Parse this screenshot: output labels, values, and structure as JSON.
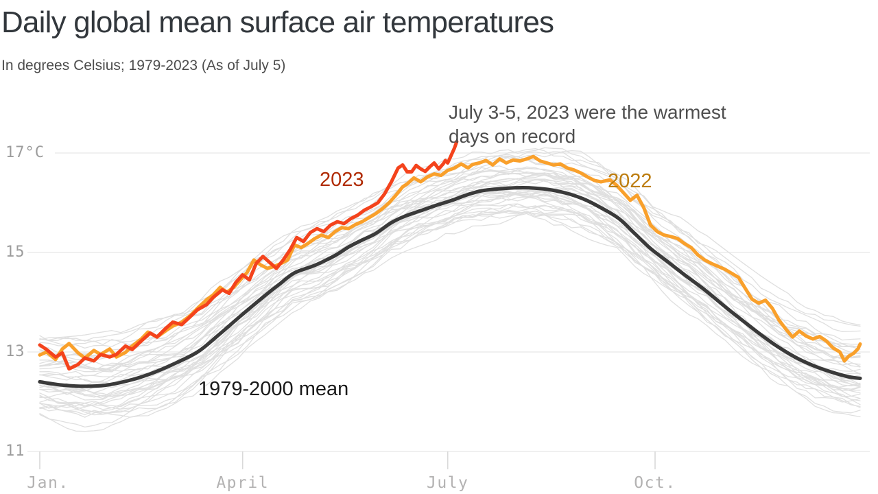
{
  "header": {
    "title": "Daily global mean surface air temperatures",
    "subtitle": "In degrees Celsius; 1979-2023 (As of July 5)"
  },
  "annotation": {
    "text": "July 3-5, 2023 were the warmest\ndays on record"
  },
  "colors": {
    "title": "#32373c",
    "subtitle": "#4d4d4d",
    "annotation": "#4f4f4f",
    "gridline": "#e8e8e8",
    "axis_tick": "#d9d9d9",
    "x_tick_label": "#b3b2b2",
    "y_tick_label": "#9c9c9c",
    "background_lines": "#dfdfdf"
  },
  "chart_data": {
    "type": "line",
    "title": "Daily global mean surface air temperatures",
    "subtitle": "In degrees Celsius; 1979-2023 (As of July 5)",
    "unit": "°C",
    "grid": "horizontal",
    "legend_position": "inline-labels",
    "x_domain_days": [
      1,
      365
    ],
    "ylim": [
      11,
      17.6
    ],
    "y_ticks": [
      {
        "label": "17°C",
        "value": 17
      },
      {
        "label": "15",
        "value": 15
      },
      {
        "label": "13",
        "value": 13
      },
      {
        "label": "11",
        "value": 11
      }
    ],
    "x_ticks": [
      {
        "label": "Jan.",
        "day": 1
      },
      {
        "label": "April",
        "day": 91
      },
      {
        "label": "July",
        "day": 182
      },
      {
        "label": "Oct.",
        "day": 274
      }
    ],
    "background_years": {
      "description": "individual years shown as thin gray lines",
      "color": "#dfdfdf",
      "width": 1.3,
      "count": 42,
      "offset_range": [
        -0.62,
        0.92
      ],
      "summer_damping": 0.35,
      "noise_step": 0.17,
      "noise_max": 0.3,
      "seed": 13
    },
    "series": [
      {
        "id": "mean",
        "name": "1979-2000 mean",
        "color": "#3a3a3a",
        "label_color": "#1a1a1a",
        "width": 5.2,
        "smooth": true,
        "points": [
          [
            1,
            12.4
          ],
          [
            10,
            12.34
          ],
          [
            20,
            12.31
          ],
          [
            30,
            12.33
          ],
          [
            40,
            12.42
          ],
          [
            50,
            12.56
          ],
          [
            60,
            12.75
          ],
          [
            71,
            13.0
          ],
          [
            80,
            13.33
          ],
          [
            90,
            13.72
          ],
          [
            100,
            14.1
          ],
          [
            107,
            14.35
          ],
          [
            114,
            14.59
          ],
          [
            123,
            14.74
          ],
          [
            132,
            14.94
          ],
          [
            138,
            15.11
          ],
          [
            144,
            15.25
          ],
          [
            150,
            15.38
          ],
          [
            157,
            15.6
          ],
          [
            163,
            15.73
          ],
          [
            170,
            15.84
          ],
          [
            177,
            15.95
          ],
          [
            184,
            16.05
          ],
          [
            190,
            16.15
          ],
          [
            197,
            16.24
          ],
          [
            205,
            16.28
          ],
          [
            212,
            16.3
          ],
          [
            218,
            16.3
          ],
          [
            226,
            16.27
          ],
          [
            234,
            16.2
          ],
          [
            242,
            16.08
          ],
          [
            250,
            15.9
          ],
          [
            258,
            15.68
          ],
          [
            265,
            15.38
          ],
          [
            272,
            15.08
          ],
          [
            280,
            14.8
          ],
          [
            288,
            14.52
          ],
          [
            296,
            14.25
          ],
          [
            304,
            13.95
          ],
          [
            312,
            13.66
          ],
          [
            320,
            13.38
          ],
          [
            328,
            13.12
          ],
          [
            336,
            12.9
          ],
          [
            344,
            12.73
          ],
          [
            352,
            12.6
          ],
          [
            360,
            12.5
          ],
          [
            365,
            12.47
          ]
        ]
      },
      {
        "id": "y2022",
        "name": "2022",
        "color": "#f9a02b",
        "label_color": "#bd7d0f",
        "width": 5,
        "smooth": false,
        "points": [
          [
            1,
            12.94
          ],
          [
            4,
            13.0
          ],
          [
            8,
            12.85
          ],
          [
            11,
            13.06
          ],
          [
            14,
            13.17
          ],
          [
            18,
            12.98
          ],
          [
            21,
            12.88
          ],
          [
            25,
            13.03
          ],
          [
            28,
            12.95
          ],
          [
            32,
            13.06
          ],
          [
            35,
            12.9
          ],
          [
            39,
            12.99
          ],
          [
            42,
            13.12
          ],
          [
            46,
            13.26
          ],
          [
            49,
            13.4
          ],
          [
            53,
            13.3
          ],
          [
            57,
            13.43
          ],
          [
            60,
            13.52
          ],
          [
            64,
            13.6
          ],
          [
            68,
            13.74
          ],
          [
            71,
            13.88
          ],
          [
            75,
            14.05
          ],
          [
            78,
            14.15
          ],
          [
            81,
            14.3
          ],
          [
            84,
            14.2
          ],
          [
            87,
            14.3
          ],
          [
            90,
            14.45
          ],
          [
            93,
            14.6
          ],
          [
            96,
            14.85
          ],
          [
            99,
            14.75
          ],
          [
            102,
            14.68
          ],
          [
            105,
            14.72
          ],
          [
            108,
            14.78
          ],
          [
            111,
            14.85
          ],
          [
            114,
            15.15
          ],
          [
            117,
            15.1
          ],
          [
            120,
            15.18
          ],
          [
            123,
            15.28
          ],
          [
            126,
            15.35
          ],
          [
            129,
            15.3
          ],
          [
            132,
            15.42
          ],
          [
            135,
            15.5
          ],
          [
            138,
            15.48
          ],
          [
            141,
            15.56
          ],
          [
            144,
            15.62
          ],
          [
            147,
            15.7
          ],
          [
            150,
            15.78
          ],
          [
            153,
            15.88
          ],
          [
            156,
            16.0
          ],
          [
            159,
            16.15
          ],
          [
            162,
            16.32
          ],
          [
            164,
            16.38
          ],
          [
            167,
            16.5
          ],
          [
            170,
            16.42
          ],
          [
            173,
            16.52
          ],
          [
            176,
            16.58
          ],
          [
            179,
            16.55
          ],
          [
            182,
            16.65
          ],
          [
            185,
            16.7
          ],
          [
            188,
            16.78
          ],
          [
            191,
            16.7
          ],
          [
            193,
            16.77
          ],
          [
            196,
            16.8
          ],
          [
            199,
            16.85
          ],
          [
            202,
            16.76
          ],
          [
            205,
            16.88
          ],
          [
            208,
            16.8
          ],
          [
            211,
            16.86
          ],
          [
            214,
            16.84
          ],
          [
            217,
            16.88
          ],
          [
            220,
            16.93
          ],
          [
            223,
            16.84
          ],
          [
            226,
            16.8
          ],
          [
            229,
            16.76
          ],
          [
            232,
            16.78
          ],
          [
            235,
            16.7
          ],
          [
            238,
            16.66
          ],
          [
            241,
            16.6
          ],
          [
            244,
            16.52
          ],
          [
            247,
            16.45
          ],
          [
            250,
            16.42
          ],
          [
            252,
            16.44
          ],
          [
            254,
            16.46
          ],
          [
            257,
            16.35
          ],
          [
            260,
            16.2
          ],
          [
            263,
            16.05
          ],
          [
            266,
            16.15
          ],
          [
            269,
            15.9
          ],
          [
            272,
            15.55
          ],
          [
            275,
            15.42
          ],
          [
            278,
            15.35
          ],
          [
            281,
            15.32
          ],
          [
            284,
            15.28
          ],
          [
            287,
            15.18
          ],
          [
            290,
            15.1
          ],
          [
            293,
            14.95
          ],
          [
            296,
            14.85
          ],
          [
            299,
            14.78
          ],
          [
            302,
            14.72
          ],
          [
            305,
            14.66
          ],
          [
            308,
            14.58
          ],
          [
            311,
            14.5
          ],
          [
            314,
            14.28
          ],
          [
            317,
            14.06
          ],
          [
            320,
            13.98
          ],
          [
            323,
            14.04
          ],
          [
            326,
            13.88
          ],
          [
            329,
            13.64
          ],
          [
            332,
            13.46
          ],
          [
            335,
            13.3
          ],
          [
            338,
            13.42
          ],
          [
            341,
            13.32
          ],
          [
            344,
            13.26
          ],
          [
            347,
            13.31
          ],
          [
            350,
            13.22
          ],
          [
            353,
            13.08
          ],
          [
            356,
            13.0
          ],
          [
            358,
            12.82
          ],
          [
            360,
            12.92
          ],
          [
            362,
            12.97
          ],
          [
            364,
            13.06
          ],
          [
            365,
            13.16
          ]
        ]
      },
      {
        "id": "y2023",
        "name": "2023",
        "color": "#f4431c",
        "label_color": "#b02b03",
        "width": 5,
        "smooth": false,
        "points": [
          [
            1,
            13.14
          ],
          [
            4,
            13.05
          ],
          [
            8,
            12.9
          ],
          [
            11,
            12.98
          ],
          [
            14,
            12.66
          ],
          [
            18,
            12.75
          ],
          [
            21,
            12.88
          ],
          [
            25,
            12.82
          ],
          [
            28,
            12.95
          ],
          [
            32,
            12.9
          ],
          [
            35,
            12.95
          ],
          [
            39,
            13.12
          ],
          [
            42,
            13.05
          ],
          [
            46,
            13.22
          ],
          [
            50,
            13.38
          ],
          [
            53,
            13.3
          ],
          [
            57,
            13.48
          ],
          [
            60,
            13.6
          ],
          [
            64,
            13.55
          ],
          [
            68,
            13.72
          ],
          [
            71,
            13.85
          ],
          [
            75,
            13.95
          ],
          [
            78,
            14.1
          ],
          [
            82,
            14.25
          ],
          [
            85,
            14.18
          ],
          [
            88,
            14.4
          ],
          [
            91,
            14.55
          ],
          [
            94,
            14.45
          ],
          [
            97,
            14.78
          ],
          [
            100,
            14.92
          ],
          [
            103,
            14.8
          ],
          [
            106,
            14.68
          ],
          [
            109,
            14.85
          ],
          [
            112,
            15.05
          ],
          [
            115,
            15.3
          ],
          [
            118,
            15.22
          ],
          [
            121,
            15.4
          ],
          [
            124,
            15.48
          ],
          [
            127,
            15.42
          ],
          [
            130,
            15.55
          ],
          [
            133,
            15.62
          ],
          [
            136,
            15.58
          ],
          [
            139,
            15.68
          ],
          [
            142,
            15.75
          ],
          [
            145,
            15.85
          ],
          [
            148,
            15.92
          ],
          [
            151,
            16.0
          ],
          [
            154,
            16.18
          ],
          [
            157,
            16.42
          ],
          [
            160,
            16.7
          ],
          [
            162,
            16.76
          ],
          [
            164,
            16.62
          ],
          [
            166,
            16.62
          ],
          [
            168,
            16.75
          ],
          [
            170,
            16.68
          ],
          [
            172,
            16.63
          ],
          [
            174,
            16.72
          ],
          [
            176,
            16.8
          ],
          [
            178,
            16.68
          ],
          [
            180,
            16.78
          ],
          [
            181,
            16.85
          ],
          [
            182,
            16.8
          ],
          [
            183,
            16.9
          ],
          [
            184,
            17.0
          ],
          [
            185,
            17.1
          ],
          [
            186,
            17.23
          ]
        ]
      }
    ]
  }
}
